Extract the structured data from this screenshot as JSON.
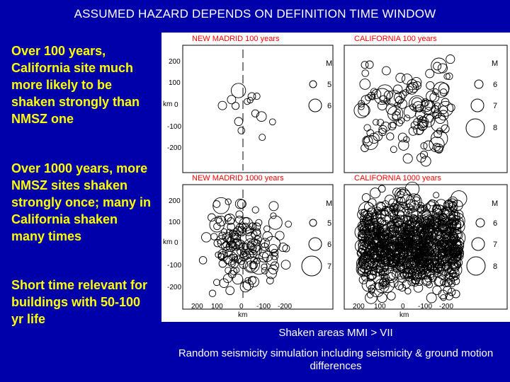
{
  "title": "ASSUMED HAZARD DEPENDS ON DEFINITION TIME WINDOW",
  "side_text": [
    "Over 100 years, California site much more likely to be shaken strongly than NMSZ one",
    "Over 1000 years, more NMSZ sites shaken strongly once; many in California shaken many times",
    "Short time relevant for buildings with 50-100 yr life"
  ],
  "caption_shaken": "Shaken areas MMI > VII",
  "caption_simulation": "Random seismicity simulation including seismicity & ground motion differences",
  "colors": {
    "background": "#0000aa",
    "highlight": "#ffff00",
    "panel_title": "#ff0000"
  },
  "chart_data": [
    {
      "type": "scatter",
      "title": "NEW MADRID 100 years",
      "ylabel": "km",
      "yticks": [
        "200",
        "100",
        "0",
        "-100",
        "-200"
      ],
      "legend_title": "M",
      "legend": [
        "5",
        "6"
      ],
      "density": "sparse",
      "count": 14
    },
    {
      "type": "scatter",
      "title": "CALIFORNIA 100 years",
      "legend_title": "M",
      "legend": [
        "6",
        "7",
        "8"
      ],
      "density": "medium",
      "count": 130
    },
    {
      "type": "scatter",
      "title": "NEW MADRID 1000 years",
      "ylabel": "km",
      "yticks": [
        "200",
        "100",
        "0",
        "-100",
        "-200"
      ],
      "xlabel": "km",
      "xticks": [
        "200",
        "100",
        "0",
        "-100",
        "-200"
      ],
      "legend_title": "M",
      "legend": [
        "5",
        "6",
        "7"
      ],
      "density": "medium",
      "count": 150
    },
    {
      "type": "scatter",
      "title": "CALIFORNIA 1000 years",
      "xlabel": "km",
      "xticks": [
        "200",
        "100",
        "0",
        "-100",
        "-200"
      ],
      "legend_title": "M",
      "legend": [
        "6",
        "7",
        "8"
      ],
      "density": "dense",
      "count": 900
    }
  ]
}
